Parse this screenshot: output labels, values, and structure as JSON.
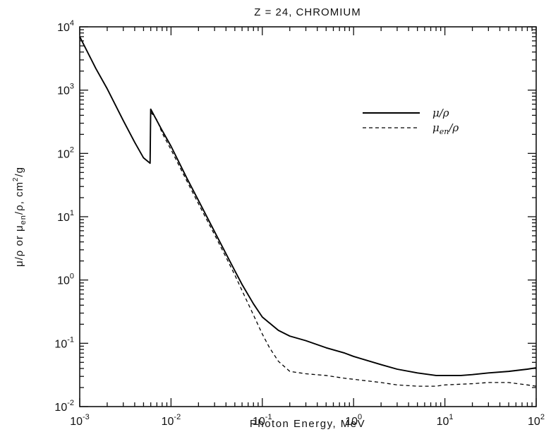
{
  "chart_data": {
    "type": "line",
    "title": "Z = 24,  CHROMIUM",
    "xlabel": "Photon Energy, MeV",
    "ylabel": "μ/ρ or μen/ρ, cm²/g",
    "ylabel_parts": {
      "a": "μ/ρ or μ",
      "sub": "en",
      "b": "/ρ, cm",
      "sup": "2",
      "c": "/g"
    },
    "xscale": "log",
    "yscale": "log",
    "xlim": [
      0.001,
      100
    ],
    "ylim": [
      0.01,
      10000
    ],
    "x_ticks": [
      {
        "base": "10",
        "exp": "-3",
        "value": 0.001
      },
      {
        "base": "10",
        "exp": "-2",
        "value": 0.01
      },
      {
        "base": "10",
        "exp": "-1",
        "value": 0.1
      },
      {
        "base": "10",
        "exp": "0",
        "value": 1
      },
      {
        "base": "10",
        "exp": "1",
        "value": 10
      },
      {
        "base": "10",
        "exp": "2",
        "value": 100
      }
    ],
    "y_ticks": [
      {
        "base": "10",
        "exp": "-2",
        "value": 0.01
      },
      {
        "base": "10",
        "exp": "-1",
        "value": 0.1
      },
      {
        "base": "10",
        "exp": "0",
        "value": 1
      },
      {
        "base": "10",
        "exp": "1",
        "value": 10
      },
      {
        "base": "10",
        "exp": "2",
        "value": 100
      },
      {
        "base": "10",
        "exp": "3",
        "value": 1000
      },
      {
        "base": "10",
        "exp": "4",
        "value": 10000
      }
    ],
    "grid": false,
    "legend_position": "top-right",
    "series": [
      {
        "name": "μ/ρ",
        "name_parts": {
          "a": "μ/ρ",
          "sub": "",
          "b": ""
        },
        "style": "solid",
        "color": "#000000",
        "points": [
          [
            0.001,
            7000
          ],
          [
            0.0015,
            2200
          ],
          [
            0.002,
            1050
          ],
          [
            0.003,
            330
          ],
          [
            0.004,
            150
          ],
          [
            0.005,
            85
          ],
          [
            0.0059,
            70
          ],
          [
            0.00599,
            500
          ],
          [
            0.006,
            500
          ],
          [
            0.008,
            230
          ],
          [
            0.01,
            130
          ],
          [
            0.015,
            40
          ],
          [
            0.02,
            18
          ],
          [
            0.03,
            5.8
          ],
          [
            0.04,
            2.6
          ],
          [
            0.05,
            1.4
          ],
          [
            0.06,
            0.85
          ],
          [
            0.08,
            0.42
          ],
          [
            0.1,
            0.26
          ],
          [
            0.15,
            0.16
          ],
          [
            0.2,
            0.13
          ],
          [
            0.3,
            0.11
          ],
          [
            0.5,
            0.085
          ],
          [
            0.8,
            0.07
          ],
          [
            1,
            0.062
          ],
          [
            2,
            0.046
          ],
          [
            3,
            0.039
          ],
          [
            5,
            0.034
          ],
          [
            8,
            0.031
          ],
          [
            10,
            0.031
          ],
          [
            15,
            0.031
          ],
          [
            20,
            0.032
          ],
          [
            30,
            0.034
          ],
          [
            50,
            0.036
          ],
          [
            80,
            0.039
          ],
          [
            100,
            0.041
          ]
        ]
      },
      {
        "name": "μen/ρ",
        "name_parts": {
          "a": "μ",
          "sub": "en",
          "b": "/ρ"
        },
        "style": "dashed",
        "color": "#000000",
        "points": [
          [
            0.00599,
            450
          ],
          [
            0.007,
            340
          ],
          [
            0.008,
            210
          ],
          [
            0.01,
            115
          ],
          [
            0.015,
            36
          ],
          [
            0.02,
            16
          ],
          [
            0.03,
            5.2
          ],
          [
            0.04,
            2.3
          ],
          [
            0.05,
            1.2
          ],
          [
            0.06,
            0.68
          ],
          [
            0.08,
            0.28
          ],
          [
            0.1,
            0.14
          ],
          [
            0.12,
            0.085
          ],
          [
            0.15,
            0.052
          ],
          [
            0.2,
            0.036
          ],
          [
            0.3,
            0.033
          ],
          [
            0.5,
            0.031
          ],
          [
            0.8,
            0.028
          ],
          [
            1,
            0.027
          ],
          [
            2,
            0.024
          ],
          [
            3,
            0.022
          ],
          [
            5,
            0.021
          ],
          [
            8,
            0.021
          ],
          [
            10,
            0.022
          ],
          [
            20,
            0.023
          ],
          [
            30,
            0.024
          ],
          [
            50,
            0.024
          ],
          [
            80,
            0.022
          ],
          [
            100,
            0.021
          ]
        ]
      }
    ]
  }
}
